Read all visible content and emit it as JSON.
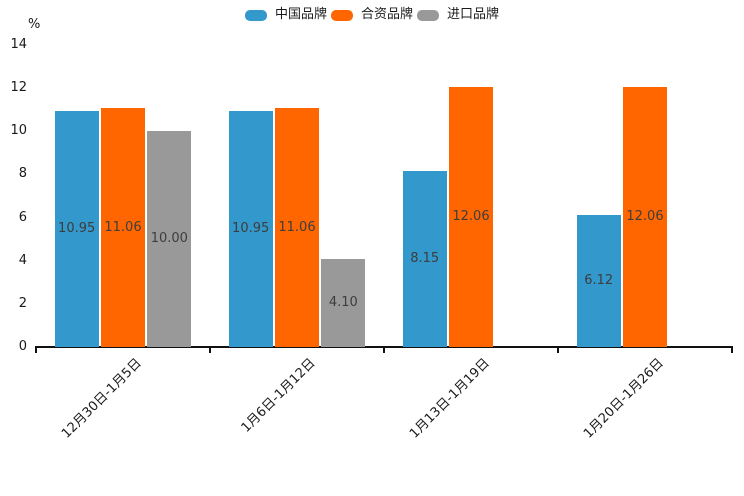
{
  "chart_data": {
    "type": "bar",
    "title": "",
    "unit_label": "%",
    "categories": [
      "12月30日-1月5日",
      "1月6日-1月12日",
      "1月13日-1月19日",
      "1月20日-1月26日"
    ],
    "series": [
      {
        "name": "中国品牌",
        "color": "#3398CB",
        "values": [
          10.95,
          10.95,
          8.15,
          6.12
        ]
      },
      {
        "name": "合资品牌",
        "color": "#FF6600",
        "values": [
          11.06,
          11.06,
          12.06,
          12.06
        ]
      },
      {
        "name": "进口品牌",
        "color": "#999999",
        "values": [
          10.0,
          4.1,
          null,
          null
        ]
      }
    ],
    "value_label_format": "2-decimals",
    "ylim": [
      0,
      14
    ],
    "yticks": [
      0,
      2,
      4,
      6,
      8,
      10,
      12,
      14
    ],
    "legend_position": "top-center",
    "grid": false,
    "axis_color": "#111111",
    "value_label_color": "#3d3d3d"
  }
}
